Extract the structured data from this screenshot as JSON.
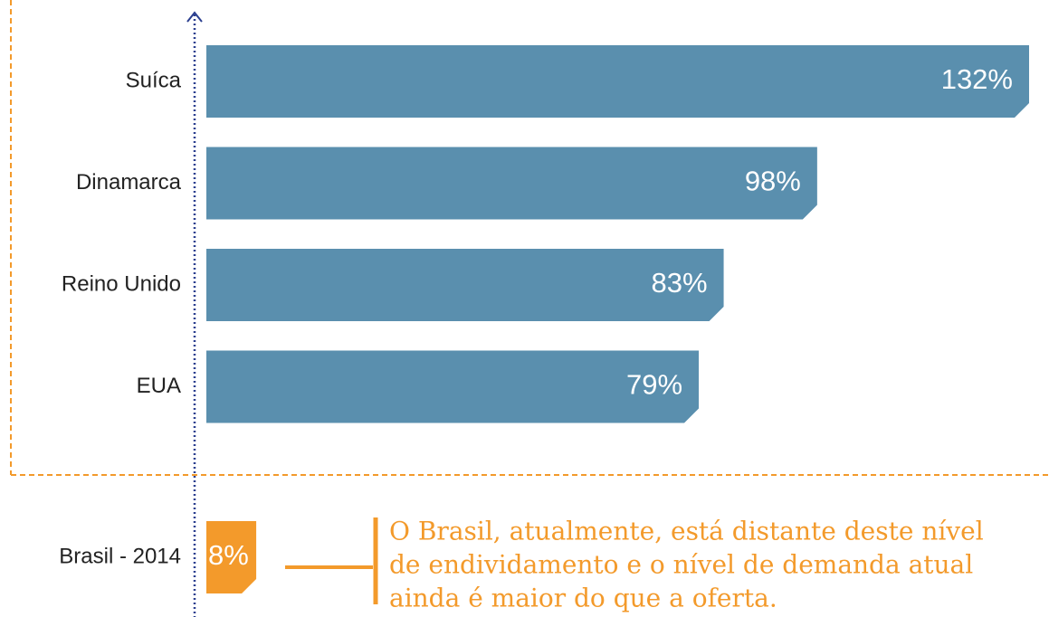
{
  "chart_data": {
    "type": "bar",
    "orientation": "horizontal",
    "categories": [
      "Suíca",
      "Dinamarca",
      "Reino Unido",
      "EUA",
      "Brasil - 2014"
    ],
    "values": [
      132,
      98,
      83,
      79,
      8
    ],
    "value_labels": [
      "132%",
      "98%",
      "83%",
      "79%",
      "8%"
    ],
    "colors": [
      "#5a8fae",
      "#5a8fae",
      "#5a8fae",
      "#5a8fae",
      "#f39a2b"
    ],
    "annotation": [
      "O Brasil, atualmente,  está distante deste nível",
      "de endividamento e o nível de demanda atual",
      "ainda é maior do que a oferta."
    ]
  }
}
